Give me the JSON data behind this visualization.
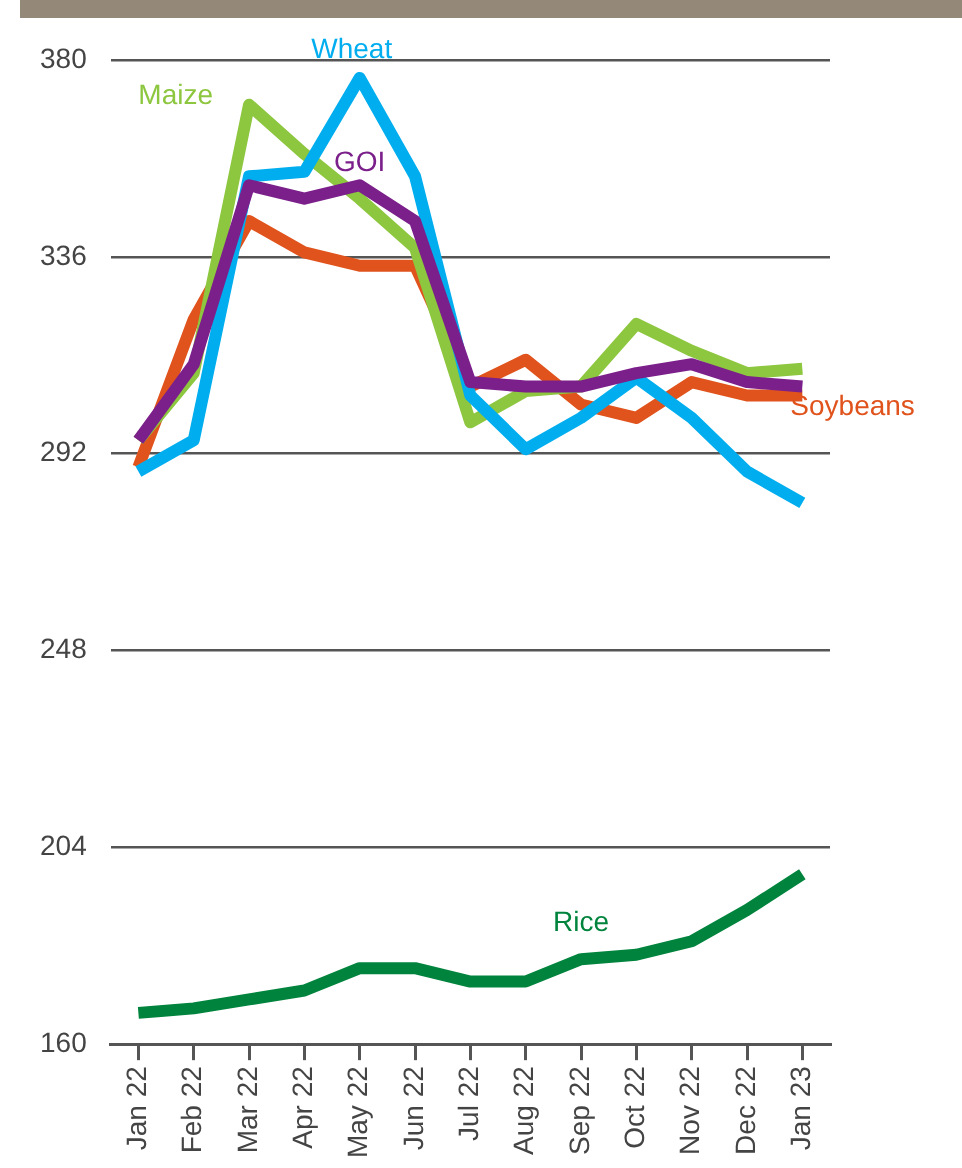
{
  "chart_data": {
    "type": "line",
    "categories": [
      "Jan 22",
      "Feb 22",
      "Mar 22",
      "Apr 22",
      "May 22",
      "Jun 22",
      "Jul 22",
      "Aug 22",
      "Sep 22",
      "Oct 22",
      "Nov 22",
      "Dec 22",
      "Jan 23"
    ],
    "series": [
      {
        "name": "GOI",
        "color": "#7b1f8a",
        "values": [
          295,
          312,
          352,
          349,
          352,
          344,
          308,
          307,
          307,
          310,
          312,
          308,
          307
        ]
      },
      {
        "name": "Wheat",
        "color": "#00aeef",
        "values": [
          288,
          295,
          354,
          355,
          376,
          354,
          305,
          293,
          300,
          309,
          300,
          288,
          281
        ]
      },
      {
        "name": "Maize",
        "color": "#8dc63f",
        "values": [
          295,
          310,
          370,
          359,
          349,
          338,
          299,
          306,
          307,
          321,
          315,
          310,
          311
        ]
      },
      {
        "name": "Soybeans",
        "color": "#e0531c",
        "values": [
          289,
          322,
          344,
          337,
          334,
          334,
          307,
          313,
          303,
          300,
          308,
          305,
          305
        ]
      },
      {
        "name": "Rice",
        "color": "#00843d",
        "values": [
          167,
          168,
          170,
          172,
          177,
          177,
          174,
          174,
          179,
          180,
          183,
          190,
          198
        ]
      }
    ],
    "ylim": [
      160,
      380
    ],
    "yticks": [
      160,
      204,
      248,
      292,
      336,
      380
    ],
    "grid": "y",
    "legend": false,
    "marker": "none",
    "line_style": "solid"
  }
}
